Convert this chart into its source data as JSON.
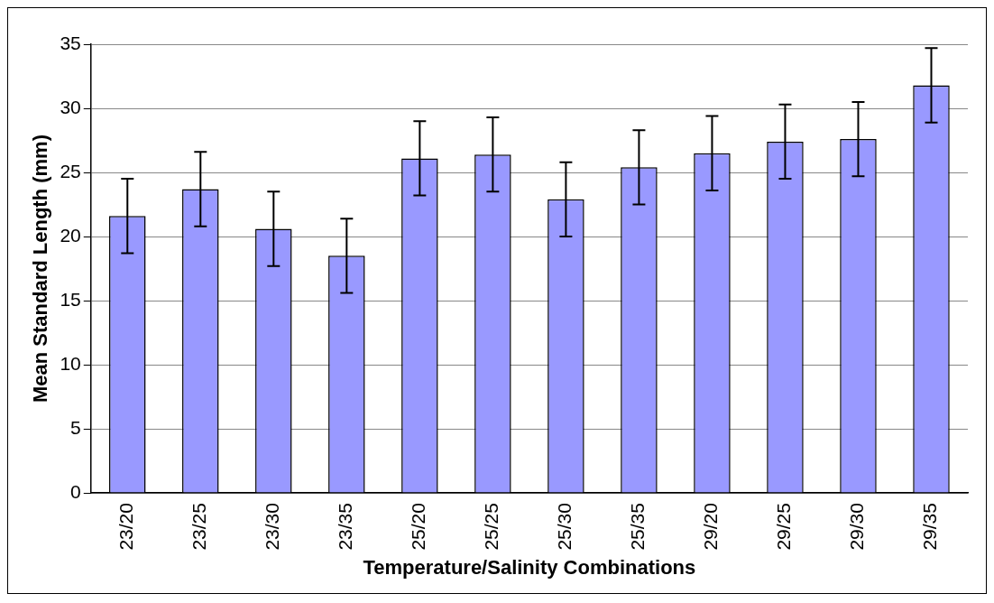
{
  "chart_data": {
    "type": "bar",
    "xlabel": "Temperature/Salinity Combinations",
    "ylabel": "Mean Standard Length (mm)",
    "categories": [
      "23/20",
      "23/25",
      "23/30",
      "23/35",
      "25/20",
      "25/25",
      "25/30",
      "25/35",
      "29/20",
      "29/25",
      "29/30",
      "29/35"
    ],
    "values": [
      21.6,
      23.7,
      20.6,
      18.5,
      26.1,
      26.4,
      22.9,
      25.4,
      26.5,
      27.4,
      27.6,
      31.8
    ],
    "errors": [
      2.9,
      2.9,
      2.9,
      2.9,
      2.9,
      2.9,
      2.9,
      2.9,
      2.9,
      2.9,
      2.9,
      2.9
    ],
    "color": "#9999ff",
    "ylim": [
      0,
      35
    ],
    "yticks": [
      0,
      5,
      10,
      15,
      20,
      25,
      30,
      35
    ],
    "grid": "y",
    "legend": false
  }
}
